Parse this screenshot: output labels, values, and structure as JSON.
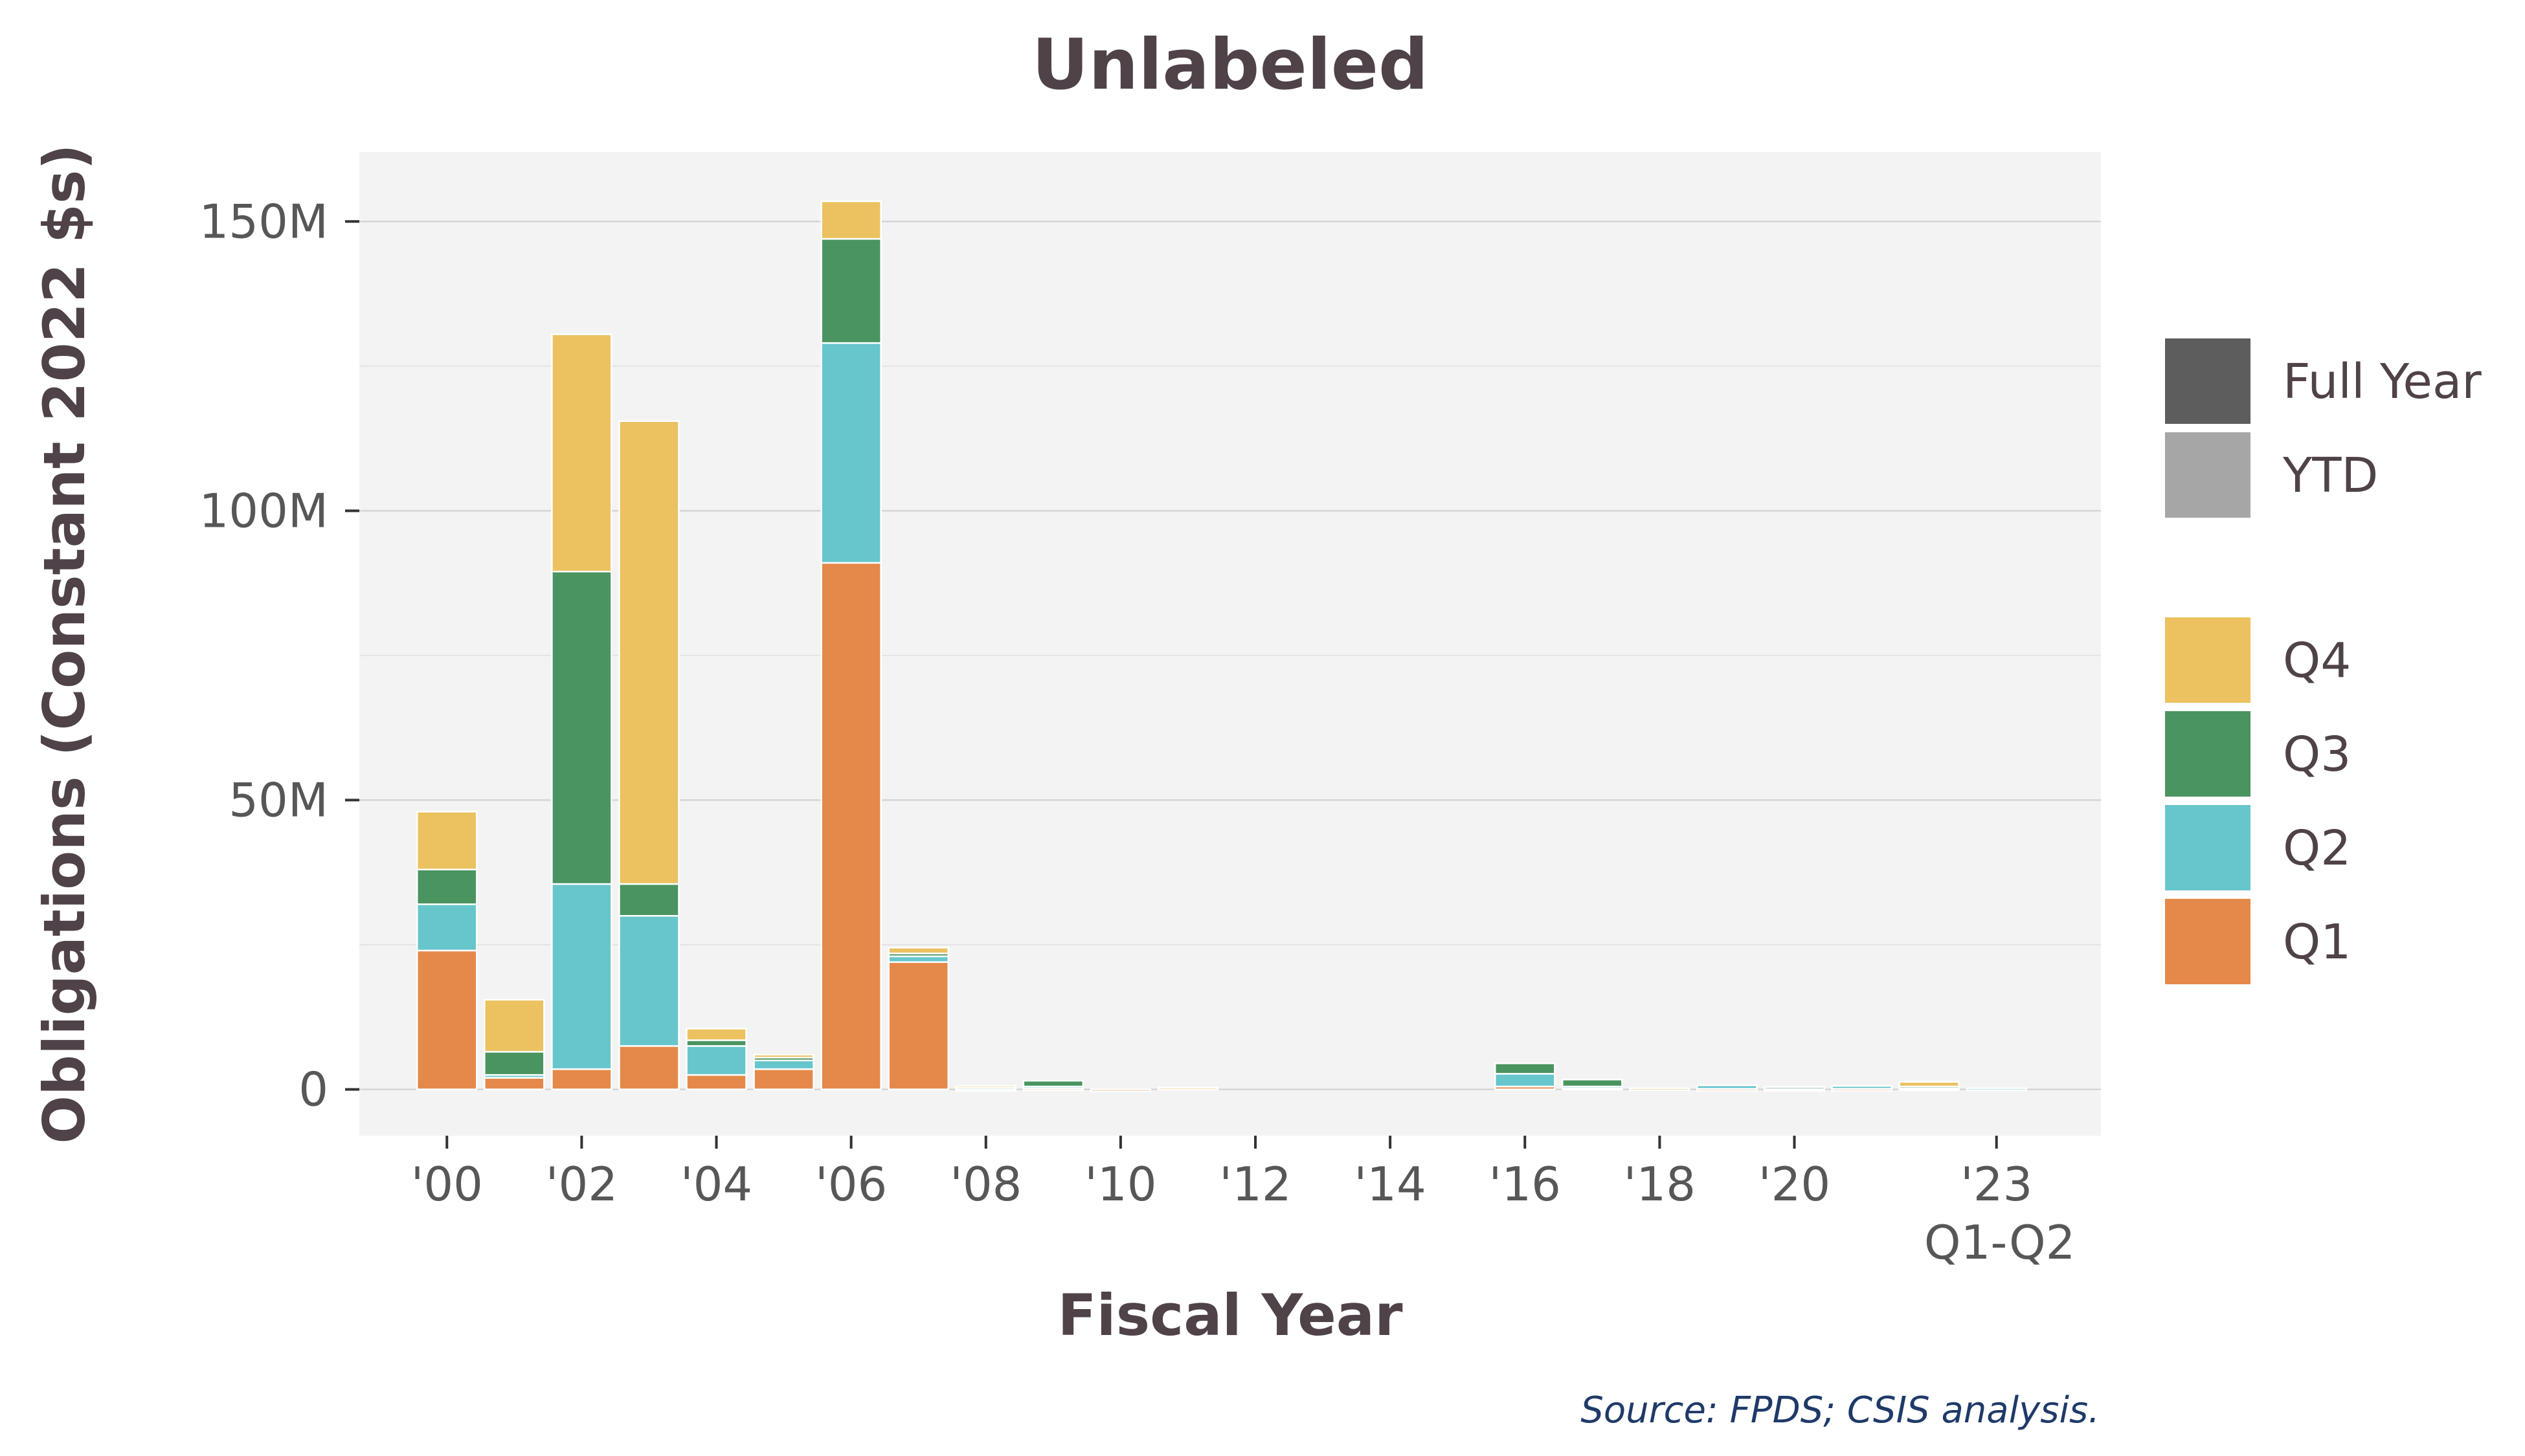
{
  "chart_data": {
    "type": "bar",
    "stacked": true,
    "title": "Unlabeled",
    "xlabel": "Fiscal Year",
    "ylabel": "Obligations (Constant 2022 $s)",
    "source": "Source: FPDS; CSIS analysis.",
    "ylim": [
      -8,
      162
    ],
    "y_unit": "millions (constant 2022 $)",
    "y_ticks": [
      {
        "value": 0,
        "label": "0"
      },
      {
        "value": 50,
        "label": "50M"
      },
      {
        "value": 100,
        "label": "100M"
      },
      {
        "value": 150,
        "label": "150M"
      }
    ],
    "x_tick_labels": [
      {
        "year": 2000,
        "label": "'00"
      },
      {
        "year": 2002,
        "label": "'02"
      },
      {
        "year": 2004,
        "label": "'04"
      },
      {
        "year": 2006,
        "label": "'06"
      },
      {
        "year": 2008,
        "label": "'08"
      },
      {
        "year": 2010,
        "label": "'10"
      },
      {
        "year": 2012,
        "label": "'12"
      },
      {
        "year": 2014,
        "label": "'14"
      },
      {
        "year": 2016,
        "label": "'16"
      },
      {
        "year": 2018,
        "label": "'18"
      },
      {
        "year": 2020,
        "label": "'20"
      },
      {
        "year": 2023,
        "label": "'23",
        "sublabel": "Q1-Q2"
      }
    ],
    "categories": [
      2000,
      2001,
      2002,
      2003,
      2004,
      2005,
      2006,
      2007,
      2008,
      2009,
      2010,
      2011,
      2012,
      2013,
      2014,
      2015,
      2016,
      2017,
      2018,
      2019,
      2020,
      2021,
      2022,
      2023
    ],
    "series": [
      {
        "name": "Q1",
        "color": "#e5894a",
        "values": [
          24,
          2,
          3.5,
          7.5,
          2.5,
          3.5,
          91,
          22,
          0.1,
          0.2,
          -0.3,
          0,
          0,
          0,
          0,
          0,
          0.5,
          0.3,
          0,
          0.1,
          0.1,
          0.1,
          0.2,
          0
        ]
      },
      {
        "name": "Q2",
        "color": "#67c6cb",
        "values": [
          8,
          0.5,
          32,
          22.5,
          5,
          1.5,
          38,
          1,
          0.1,
          0.3,
          0,
          0,
          0,
          0,
          0,
          0,
          2.2,
          0.2,
          0,
          0.6,
          0.1,
          0.5,
          0.1,
          0.2
        ]
      },
      {
        "name": "Q3",
        "color": "#4a9460",
        "values": [
          6,
          4,
          54,
          5.5,
          1,
          0.5,
          18,
          0.5,
          0.1,
          1.0,
          0,
          0,
          0,
          0,
          0,
          0,
          1.8,
          1.2,
          0,
          0,
          0.2,
          0,
          0.2,
          0
        ]
      },
      {
        "name": "Q4",
        "color": "#ecc260",
        "values": [
          10,
          9,
          41,
          80,
          2,
          0.5,
          6.5,
          1,
          0.3,
          0,
          0,
          0.3,
          0,
          0,
          0,
          0,
          0,
          0,
          0.2,
          0,
          0,
          0,
          0.8,
          0
        ]
      }
    ]
  },
  "legend": {
    "period": [
      {
        "label": "Full Year",
        "color": "#5d5d5d"
      },
      {
        "label": "YTD",
        "color": "#a6a6a6"
      }
    ],
    "quarters": [
      {
        "label": "Q4",
        "color": "#ecc260"
      },
      {
        "label": "Q3",
        "color": "#4a9460"
      },
      {
        "label": "Q2",
        "color": "#67c6cb"
      },
      {
        "label": "Q1",
        "color": "#e5894a"
      }
    ]
  },
  "colors": {
    "panel_bg": "#f3f3f3",
    "grid_major": "#d4d4d4",
    "grid_minor": "#e4e4e4",
    "text": "#4f4248"
  }
}
